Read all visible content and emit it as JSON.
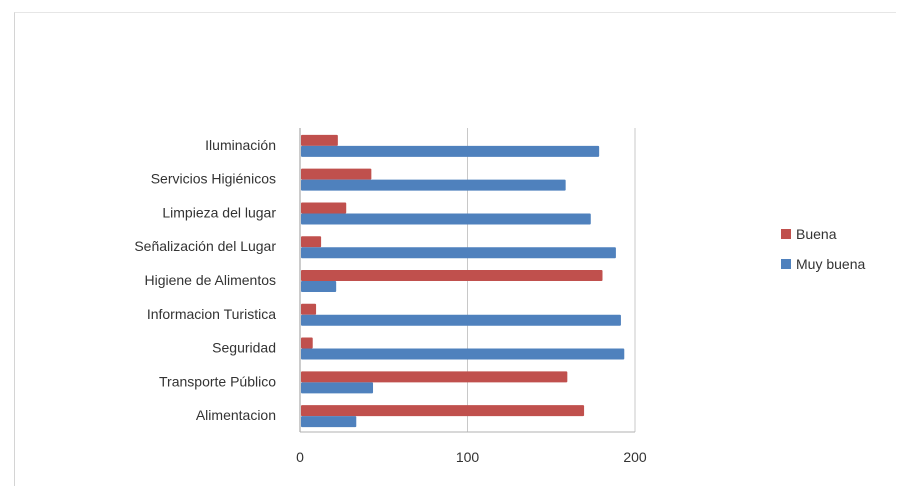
{
  "chart_data": {
    "type": "bar",
    "orientation": "horizontal",
    "categories": [
      "Iluminación",
      "Servicios Higiénicos",
      "Limpieza del lugar",
      "Señalización del Lugar",
      "Higiene de Alimentos",
      "Informacion Turistica",
      "Seguridad",
      "Transporte Público",
      "Alimentacion"
    ],
    "series": [
      {
        "name": "Buena",
        "color": "#c0504d",
        "values": [
          22,
          42,
          27,
          12,
          180,
          9,
          7,
          159,
          169
        ]
      },
      {
        "name": "Muy buena",
        "color": "#4f81bd",
        "values": [
          178,
          158,
          173,
          188,
          21,
          191,
          193,
          43,
          33
        ]
      }
    ],
    "xlim": [
      0,
      200
    ],
    "xticks": [
      0,
      100,
      200
    ],
    "grid": "vertical",
    "legend_position": "right"
  }
}
